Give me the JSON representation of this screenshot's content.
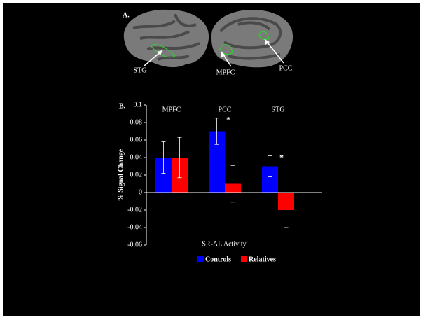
{
  "figure": {
    "panel_labels": [
      "A.",
      "B."
    ],
    "brain_labels": [
      "STG",
      "MPFC",
      "PCC"
    ]
  },
  "chart_data": {
    "type": "bar",
    "ylabel": "% Signal Change",
    "xlabel": "SR-AL Activity",
    "categories": [
      "MPFC",
      "PCC",
      "STG"
    ],
    "series": [
      {
        "name": "Controls",
        "color": "#0000ff",
        "values": [
          0.04,
          0.07,
          0.03
        ],
        "errors": [
          0.018,
          0.015,
          0.012
        ],
        "markers": [
          null,
          "*",
          "*"
        ]
      },
      {
        "name": "Relatives",
        "color": "#ff0000",
        "values": [
          0.04,
          0.01,
          -0.02
        ],
        "errors": [
          0.023,
          0.021,
          0.02
        ]
      }
    ],
    "ylim": [
      -0.06,
      0.1
    ],
    "yticks": [
      -0.06,
      -0.04,
      -0.02,
      0,
      0.02,
      0.04,
      0.06,
      0.08,
      0.1
    ],
    "grid": false,
    "legend": "bottom"
  }
}
